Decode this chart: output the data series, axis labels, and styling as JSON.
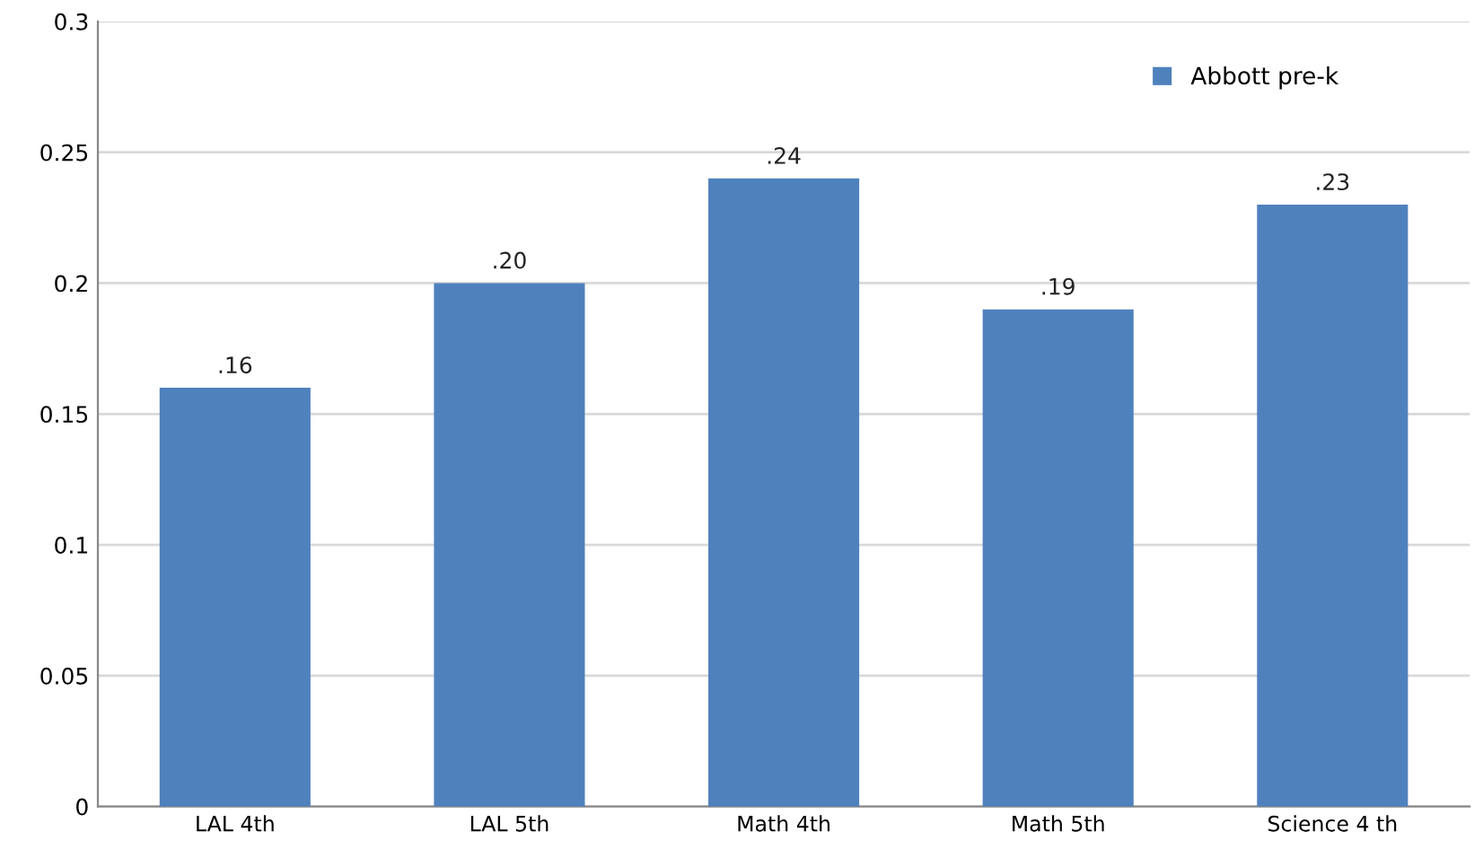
{
  "chart_data": {
    "type": "bar",
    "categories": [
      "LAL 4th",
      "LAL 5th",
      "Math 4th",
      "Math 5th",
      "Science 4 th"
    ],
    "series": [
      {
        "name": "Abbott pre-k",
        "color": "#4f81bd",
        "values": [
          0.16,
          0.2,
          0.24,
          0.19,
          0.23
        ],
        "value_labels": [
          ".16",
          ".20",
          ".24",
          ".19",
          ".23"
        ]
      }
    ],
    "ylim": [
      0,
      0.3
    ],
    "yticks": [
      0,
      0.05,
      0.1,
      0.15,
      0.2,
      0.25,
      0.3
    ],
    "grid": "y",
    "legend": "top right"
  }
}
